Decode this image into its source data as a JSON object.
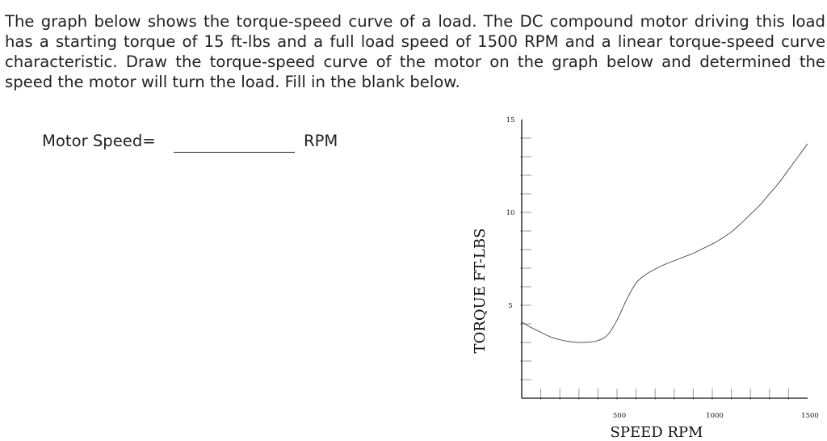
{
  "problem": {
    "text": "The graph below shows the torque-speed curve of a load.  The DC compound motor driving this load has a starting torque of 15 ft-lbs and a full load speed of 1500 RPM and a linear torque-speed curve characteristic.  Draw the torque-speed curve of the motor on the graph below and determined the speed the motor will turn the load.  Fill in the blank below."
  },
  "answer": {
    "label": "Motor Speed=",
    "unit": "RPM"
  },
  "chart_data": {
    "type": "line",
    "xlabel": "SPEED RPM",
    "ylabel": "TORQUE  FT-LBS",
    "xlim": [
      0,
      1500
    ],
    "ylim": [
      0,
      15
    ],
    "x_ticks": [
      500,
      1000,
      1500
    ],
    "y_ticks": [
      5,
      10,
      15
    ],
    "x_tick_labels": [
      "500",
      "1000",
      "1500"
    ],
    "y_tick_labels": [
      "5",
      "10",
      "15"
    ],
    "series": [
      {
        "color": "#555555",
        "x": [
          0,
          50,
          100,
          150,
          200,
          250,
          300,
          350,
          400,
          450,
          500,
          550,
          600,
          650,
          700,
          750,
          800,
          850,
          900,
          950,
          1000,
          1050,
          1100,
          1150,
          1200,
          1250,
          1300,
          1350,
          1400,
          1450,
          1500
        ],
        "y": [
          4.1,
          3.8,
          3.55,
          3.3,
          3.15,
          3.05,
          3.0,
          3.02,
          3.1,
          3.4,
          4.2,
          5.3,
          6.2,
          6.65,
          6.95,
          7.2,
          7.4,
          7.6,
          7.8,
          8.05,
          8.3,
          8.6,
          8.95,
          9.4,
          9.9,
          10.4,
          11.0,
          11.6,
          12.3,
          13.0,
          13.7
        ]
      }
    ]
  }
}
